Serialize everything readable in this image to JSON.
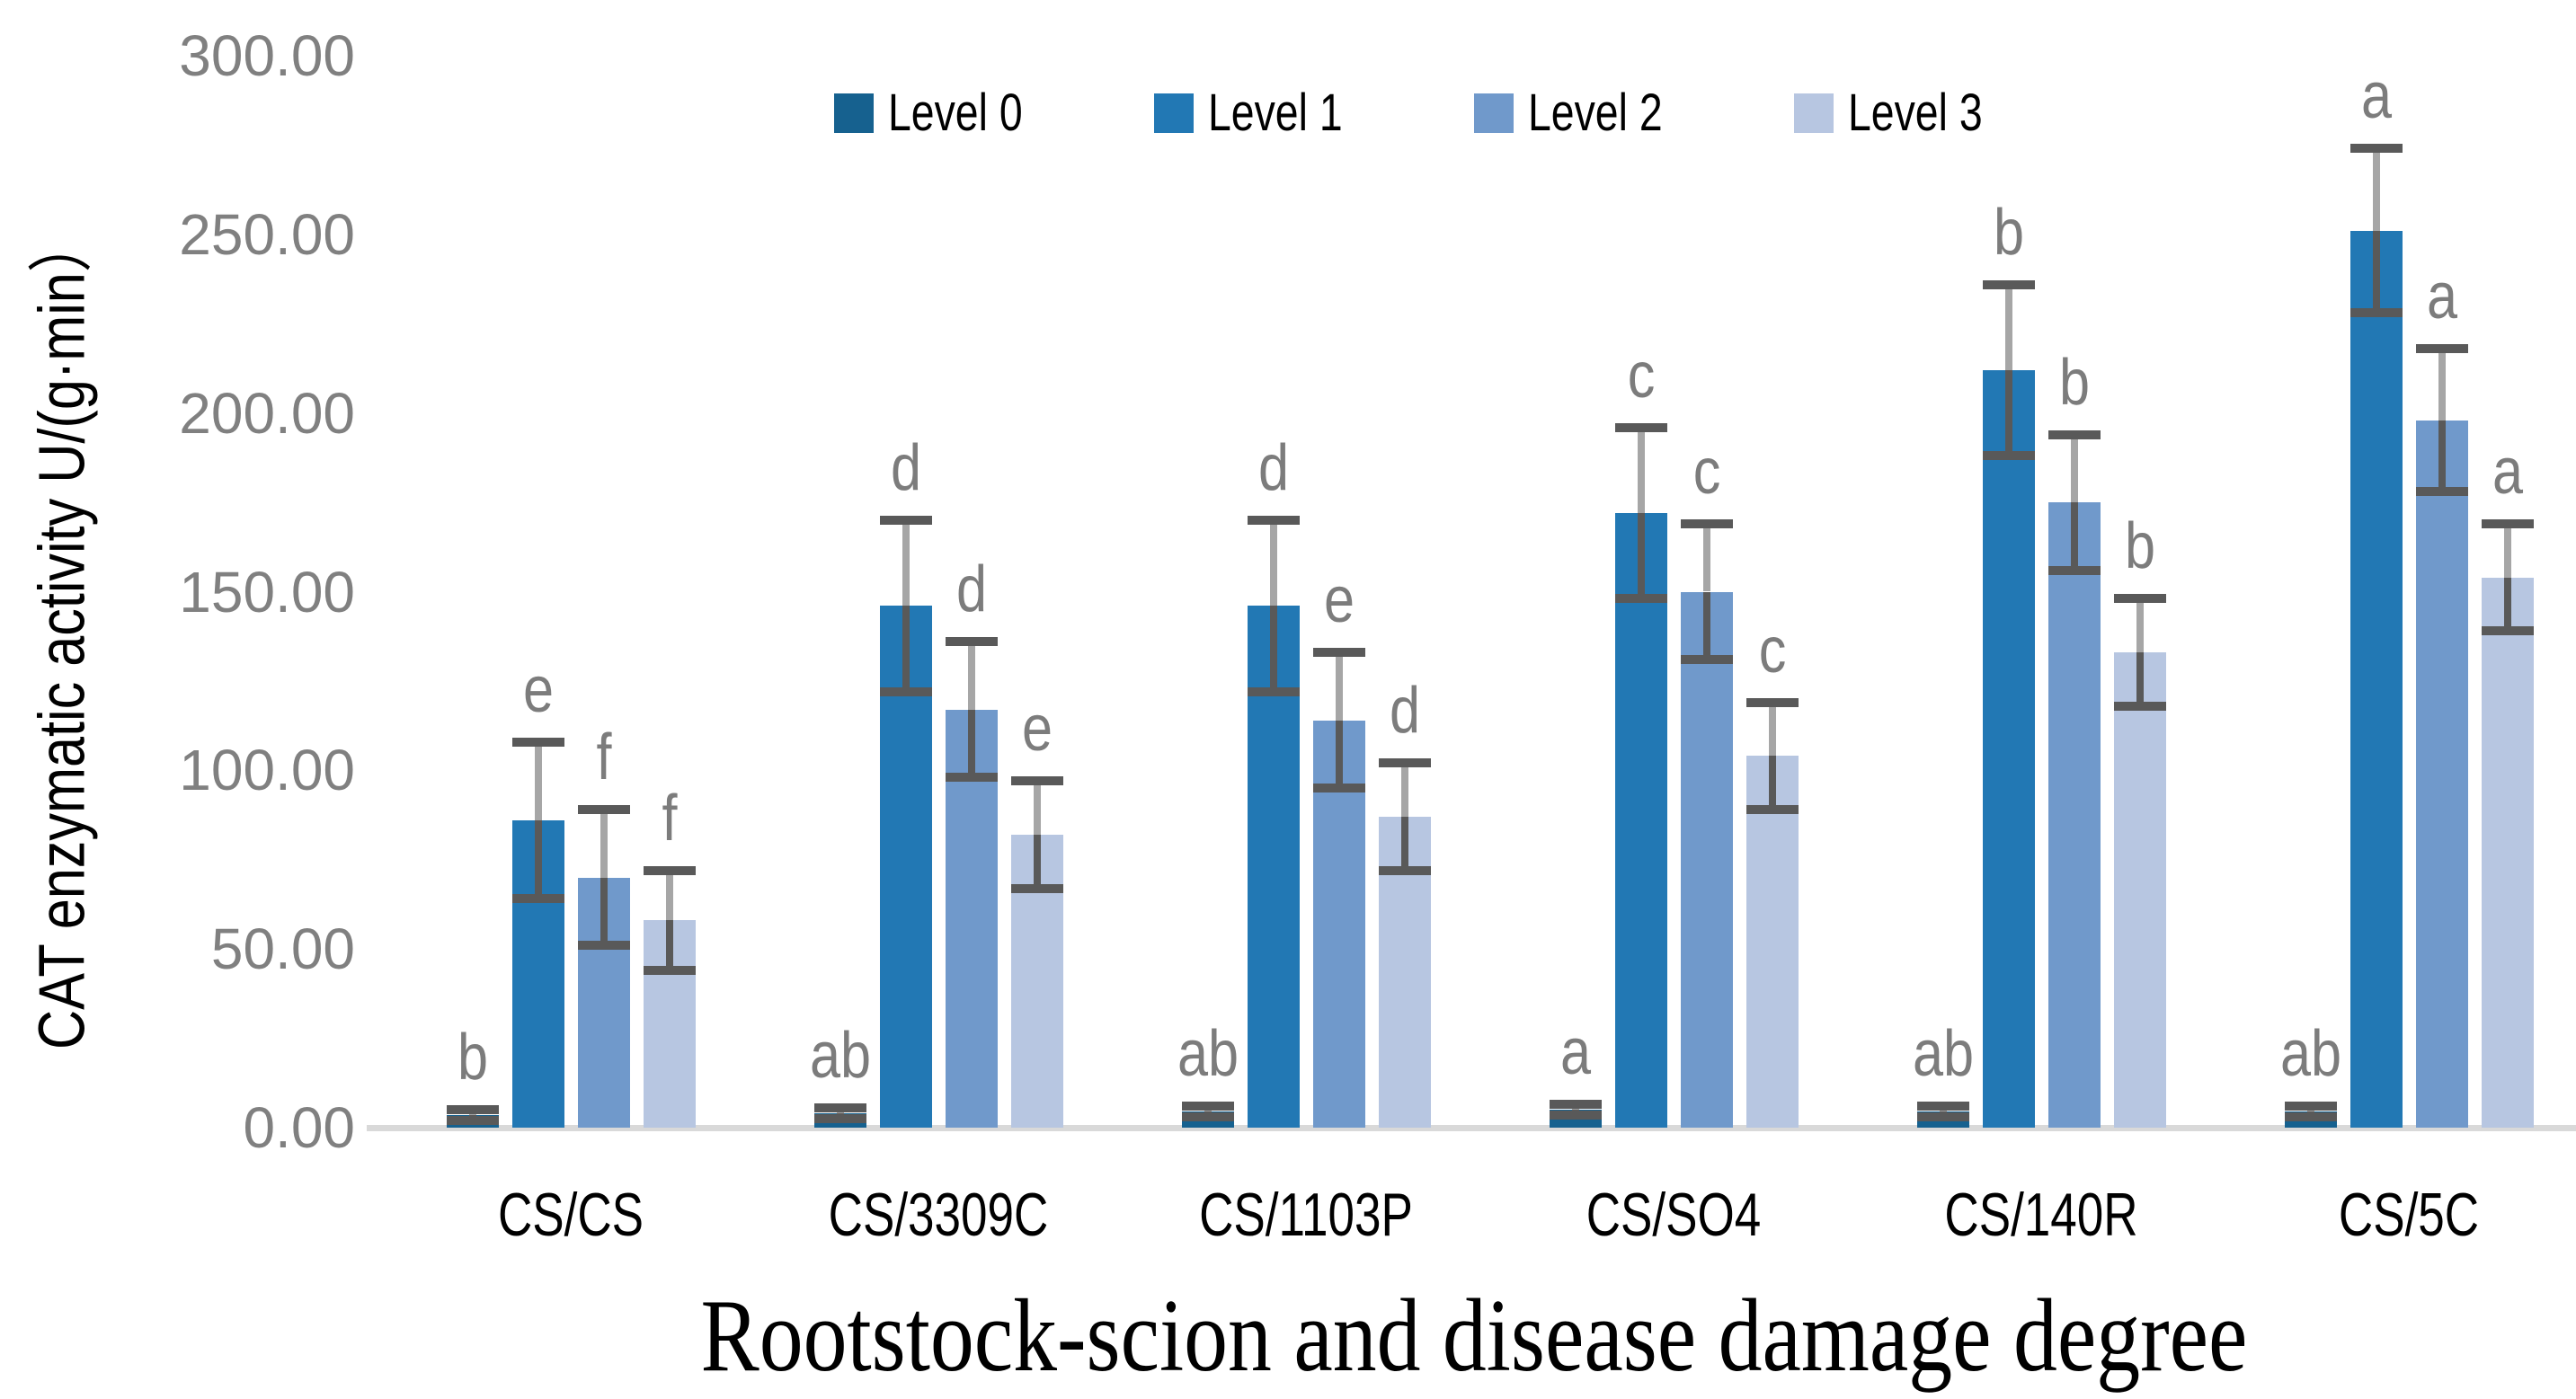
{
  "chart_data": {
    "type": "bar",
    "title": "",
    "xlabel": "Rootstock-scion and disease damage degree",
    "ylabel": "CAT enzymatic activity U/(g·min）",
    "ylim": [
      0,
      300
    ],
    "ytick_step": 50,
    "ytick_labels": [
      "0.00",
      "50.00",
      "100.00",
      "150.00",
      "200.00",
      "250.00",
      "300.00"
    ],
    "grid": false,
    "legend_position": "top-center",
    "categories": [
      "CS/CS",
      "CS/3309C",
      "CS/1103P",
      "CS/SO4",
      "CS/140R",
      "CS/5C"
    ],
    "series": [
      {
        "name": "Level 0",
        "color": "#16618F",
        "values": [
          3.5,
          4.0,
          4.5,
          5.0,
          4.5,
          4.5
        ],
        "errors": [
          1.5,
          1.5,
          1.5,
          1.5,
          1.5,
          1.5
        ],
        "sig_letters": [
          "b",
          "ab",
          "ab",
          "a",
          "ab",
          "ab"
        ]
      },
      {
        "name": "Level 1",
        "color": "#2278B4",
        "values": [
          86,
          146,
          146,
          172,
          212,
          251
        ],
        "errors": [
          22,
          24,
          24,
          24,
          24,
          23
        ],
        "sig_letters": [
          "e",
          "d",
          "d",
          "c",
          "b",
          "a"
        ]
      },
      {
        "name": "Level 2",
        "color": "#7099CB",
        "values": [
          70,
          117,
          114,
          150,
          175,
          198
        ],
        "errors": [
          19,
          19,
          19,
          19,
          19,
          20
        ],
        "sig_letters": [
          "f",
          "d",
          "e",
          "c",
          "b",
          "a"
        ]
      },
      {
        "name": "Level 3",
        "color": "#B7C6E1",
        "values": [
          58,
          82,
          87,
          104,
          133,
          154
        ],
        "errors": [
          14,
          15,
          15,
          15,
          15,
          15
        ],
        "sig_letters": [
          "f",
          "e",
          "d",
          "c",
          "b",
          "a"
        ]
      }
    ],
    "style": {
      "error_cap_color": "#595959",
      "error_stem_upper_color": "#A6A6A6",
      "error_stem_lower_color": "#595959",
      "axis_line_color": "#D9D9D9",
      "tick_label_color": "#808080",
      "sig_letter_color": "#7C7C7C"
    }
  }
}
